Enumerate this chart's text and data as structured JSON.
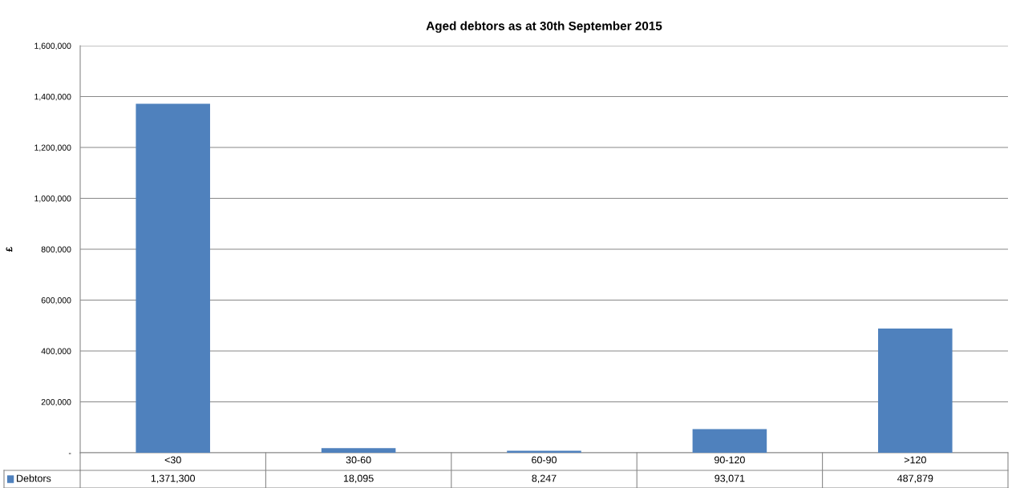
{
  "chart_data": {
    "type": "bar",
    "title": "Aged debtors as at 30th September 2015",
    "ylabel": "£",
    "categories": [
      "<30",
      "30-60",
      "60-90",
      "90-120",
      ">120"
    ],
    "series": [
      {
        "name": "Debtors",
        "color": "#4f81bd",
        "values": [
          1371300,
          18095,
          8247,
          93071,
          487879
        ],
        "value_labels": [
          "1,371,300",
          "18,095",
          "8,247",
          "93,071",
          "487,879"
        ]
      }
    ],
    "ylim": [
      0,
      1600000
    ],
    "yticks": [
      {
        "value": 0,
        "label": "-"
      },
      {
        "value": 200000,
        "label": "200,000"
      },
      {
        "value": 400000,
        "label": "400,000"
      },
      {
        "value": 600000,
        "label": "600,000"
      },
      {
        "value": 800000,
        "label": "800,000"
      },
      {
        "value": 1000000,
        "label": "1,000,000"
      },
      {
        "value": 1200000,
        "label": "1,200,000"
      },
      {
        "value": 1400000,
        "label": "1,400,000"
      },
      {
        "value": 1600000,
        "label": "1,600,000"
      }
    ],
    "grid": "y",
    "legend": "bottom left"
  }
}
